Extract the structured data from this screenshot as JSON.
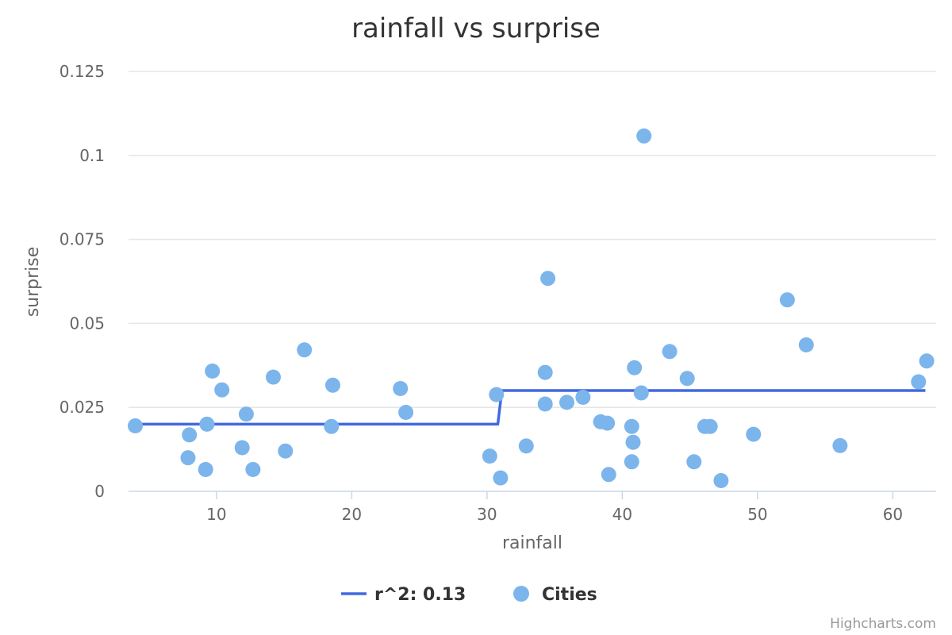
{
  "chart_data": {
    "type": "scatter",
    "title": "rainfall vs surprise",
    "xlabel": "rainfall",
    "ylabel": "surprise",
    "xlim": [
      3.5,
      63.2
    ],
    "ylim": [
      0,
      0.125
    ],
    "x_ticks": [
      10,
      20,
      30,
      40,
      50,
      60
    ],
    "y_ticks": [
      0,
      0.025,
      0.05,
      0.075,
      0.1,
      0.125
    ],
    "x_tick_labels": [
      "10",
      "20",
      "30",
      "40",
      "50",
      "60"
    ],
    "y_tick_labels": [
      "0",
      "0.025",
      "0.05",
      "0.075",
      "0.1",
      "0.125"
    ],
    "grid": "horizontal",
    "legend_position": "bottom-center",
    "series": [
      {
        "name": "r^2: 0.13",
        "type": "line",
        "color": "#4169e1",
        "points": [
          [
            4.2,
            0.02
          ],
          [
            30.8,
            0.02
          ],
          [
            31.1,
            0.03
          ],
          [
            62.4,
            0.03
          ]
        ]
      },
      {
        "name": "Cities",
        "type": "scatter",
        "color": "#7cb5ec",
        "points": [
          [
            4.0,
            0.0195
          ],
          [
            7.9,
            0.01
          ],
          [
            8.0,
            0.0168
          ],
          [
            9.2,
            0.0065
          ],
          [
            9.3,
            0.02
          ],
          [
            9.7,
            0.0358
          ],
          [
            10.4,
            0.0302
          ],
          [
            11.9,
            0.013
          ],
          [
            12.2,
            0.023
          ],
          [
            12.7,
            0.0065
          ],
          [
            14.2,
            0.034
          ],
          [
            15.1,
            0.012
          ],
          [
            16.5,
            0.0421
          ],
          [
            18.5,
            0.0193
          ],
          [
            18.6,
            0.0316
          ],
          [
            23.6,
            0.0306
          ],
          [
            24.0,
            0.0235
          ],
          [
            30.2,
            0.0105
          ],
          [
            30.7,
            0.0288
          ],
          [
            31.0,
            0.004
          ],
          [
            32.9,
            0.0135
          ],
          [
            34.3,
            0.0354
          ],
          [
            34.3,
            0.026
          ],
          [
            34.5,
            0.0634
          ],
          [
            35.9,
            0.0265
          ],
          [
            37.1,
            0.028
          ],
          [
            38.4,
            0.0207
          ],
          [
            38.9,
            0.0203
          ],
          [
            39.0,
            0.005
          ],
          [
            40.7,
            0.0193
          ],
          [
            40.7,
            0.0088
          ],
          [
            40.8,
            0.0146
          ],
          [
            40.9,
            0.0368
          ],
          [
            41.4,
            0.0293
          ],
          [
            41.6,
            0.1058
          ],
          [
            43.5,
            0.0416
          ],
          [
            44.8,
            0.0336
          ],
          [
            45.3,
            0.0088
          ],
          [
            46.1,
            0.0193
          ],
          [
            46.5,
            0.0193
          ],
          [
            47.3,
            0.0032
          ],
          [
            49.7,
            0.017
          ],
          [
            52.2,
            0.057
          ],
          [
            53.6,
            0.0436
          ],
          [
            56.1,
            0.0136
          ],
          [
            61.9,
            0.0326
          ],
          [
            62.5,
            0.0388
          ]
        ]
      }
    ]
  },
  "credits": "Highcharts.com"
}
